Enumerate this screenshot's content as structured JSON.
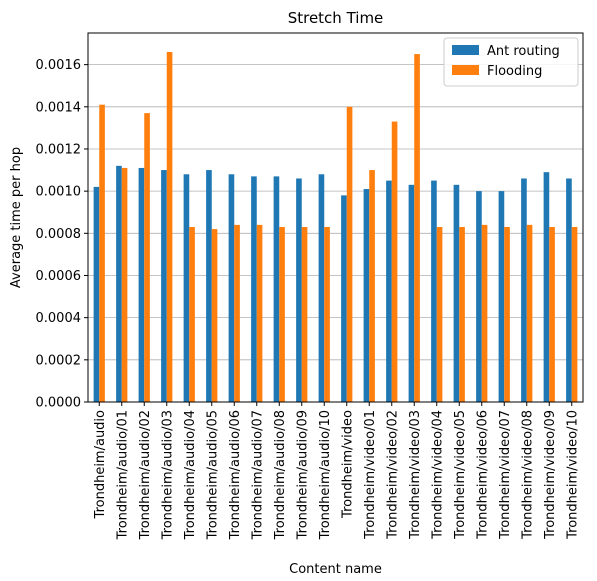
{
  "chart_data": {
    "type": "bar",
    "title": "Stretch Time",
    "xlabel": "Content name",
    "ylabel": "Average time per hop",
    "ylim": [
      0,
      0.00175
    ],
    "yticks": [
      "0.0000",
      "0.0002",
      "0.0004",
      "0.0006",
      "0.0008",
      "0.0010",
      "0.0012",
      "0.0014",
      "0.0016"
    ],
    "grid": "horizontal",
    "legend_position": "top-right",
    "categories": [
      "Trondheim/audio",
      "Trondheim/audio/01",
      "Trondheim/audio/02",
      "Trondheim/audio/03",
      "Trondheim/audio/04",
      "Trondheim/audio/05",
      "Trondheim/audio/06",
      "Trondheim/audio/07",
      "Trondheim/audio/08",
      "Trondheim/audio/09",
      "Trondheim/audio/10",
      "Trondheim/video",
      "Trondheim/video/01",
      "Trondheim/video/02",
      "Trondheim/video/03",
      "Trondheim/video/04",
      "Trondheim/video/05",
      "Trondheim/video/06",
      "Trondheim/video/07",
      "Trondheim/video/08",
      "Trondheim/video/09",
      "Trondheim/video/10"
    ],
    "series": [
      {
        "name": "Ant routing",
        "color": "#1f77b4",
        "values": [
          0.00102,
          0.00112,
          0.00111,
          0.0011,
          0.00108,
          0.0011,
          0.00108,
          0.00107,
          0.00107,
          0.00106,
          0.00108,
          0.00098,
          0.00101,
          0.00105,
          0.00103,
          0.00105,
          0.00103,
          0.001,
          0.001,
          0.00106,
          0.00109,
          0.00106
        ]
      },
      {
        "name": "Flooding",
        "color": "#ff7f0e",
        "values": [
          0.00141,
          0.00111,
          0.00137,
          0.00166,
          0.00083,
          0.00082,
          0.00084,
          0.00084,
          0.00083,
          0.00083,
          0.00083,
          0.0014,
          0.0011,
          0.00133,
          0.00165,
          0.00083,
          0.00083,
          0.00084,
          0.00083,
          0.00084,
          0.00083,
          0.00083
        ]
      }
    ]
  }
}
